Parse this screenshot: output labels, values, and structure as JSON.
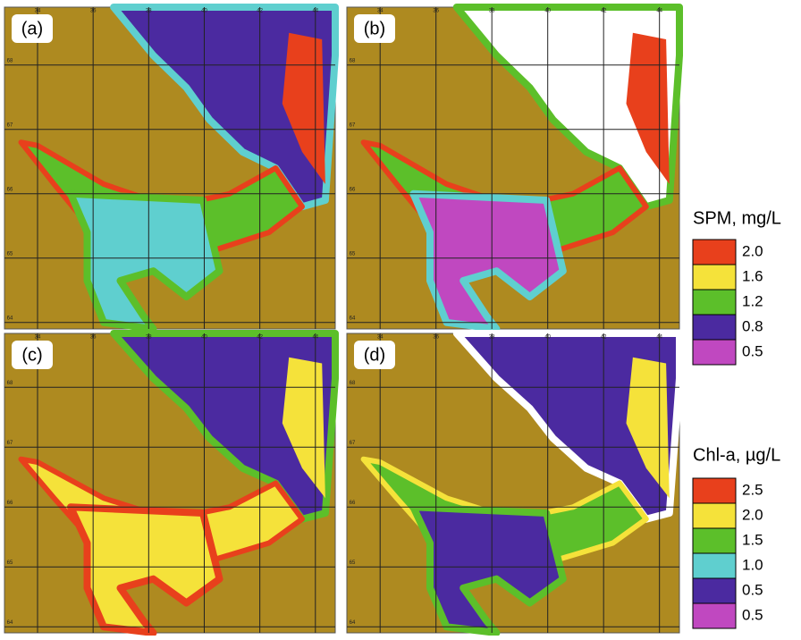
{
  "panels": [
    {
      "label": "(a)",
      "x_ticks": [
        34,
        36,
        38,
        40,
        42,
        44
      ],
      "y_ticks": [
        68,
        67,
        66,
        65,
        64
      ]
    },
    {
      "label": "(b)",
      "x_ticks": [
        34,
        36,
        38,
        40,
        42,
        44
      ],
      "y_ticks": [
        68,
        67,
        66,
        65,
        64
      ]
    },
    {
      "label": "(c)",
      "x_ticks": [
        34,
        36,
        38,
        40,
        42,
        44
      ],
      "y_ticks": [
        68,
        67,
        66,
        65,
        64
      ]
    },
    {
      "label": "(d)",
      "x_ticks": [
        34,
        36,
        38,
        40,
        42,
        44
      ],
      "y_ticks": [
        68,
        67,
        66,
        65,
        64
      ]
    }
  ],
  "legends": [
    {
      "title": "SPM, mg/L",
      "entries": [
        {
          "label": "2.0",
          "color": "#e8401c"
        },
        {
          "label": "1.6",
          "color": "#f5e23a"
        },
        {
          "label": "1.2",
          "color": "#5cbf2a"
        },
        {
          "label": "0.8",
          "color": "#4b2aa0"
        },
        {
          "label": "0.5",
          "color": "#c048c0"
        }
      ]
    },
    {
      "title": "Chl-a, µg/L",
      "entries": [
        {
          "label": "2.5",
          "color": "#e8401c"
        },
        {
          "label": "2.0",
          "color": "#f5e23a"
        },
        {
          "label": "1.5",
          "color": "#5cbf2a"
        },
        {
          "label": "1.0",
          "color": "#5fcfcf"
        },
        {
          "label": "0.5",
          "color": "#4b2aa0"
        },
        {
          "label": "0.5",
          "color": "#c048c0"
        }
      ]
    }
  ]
}
